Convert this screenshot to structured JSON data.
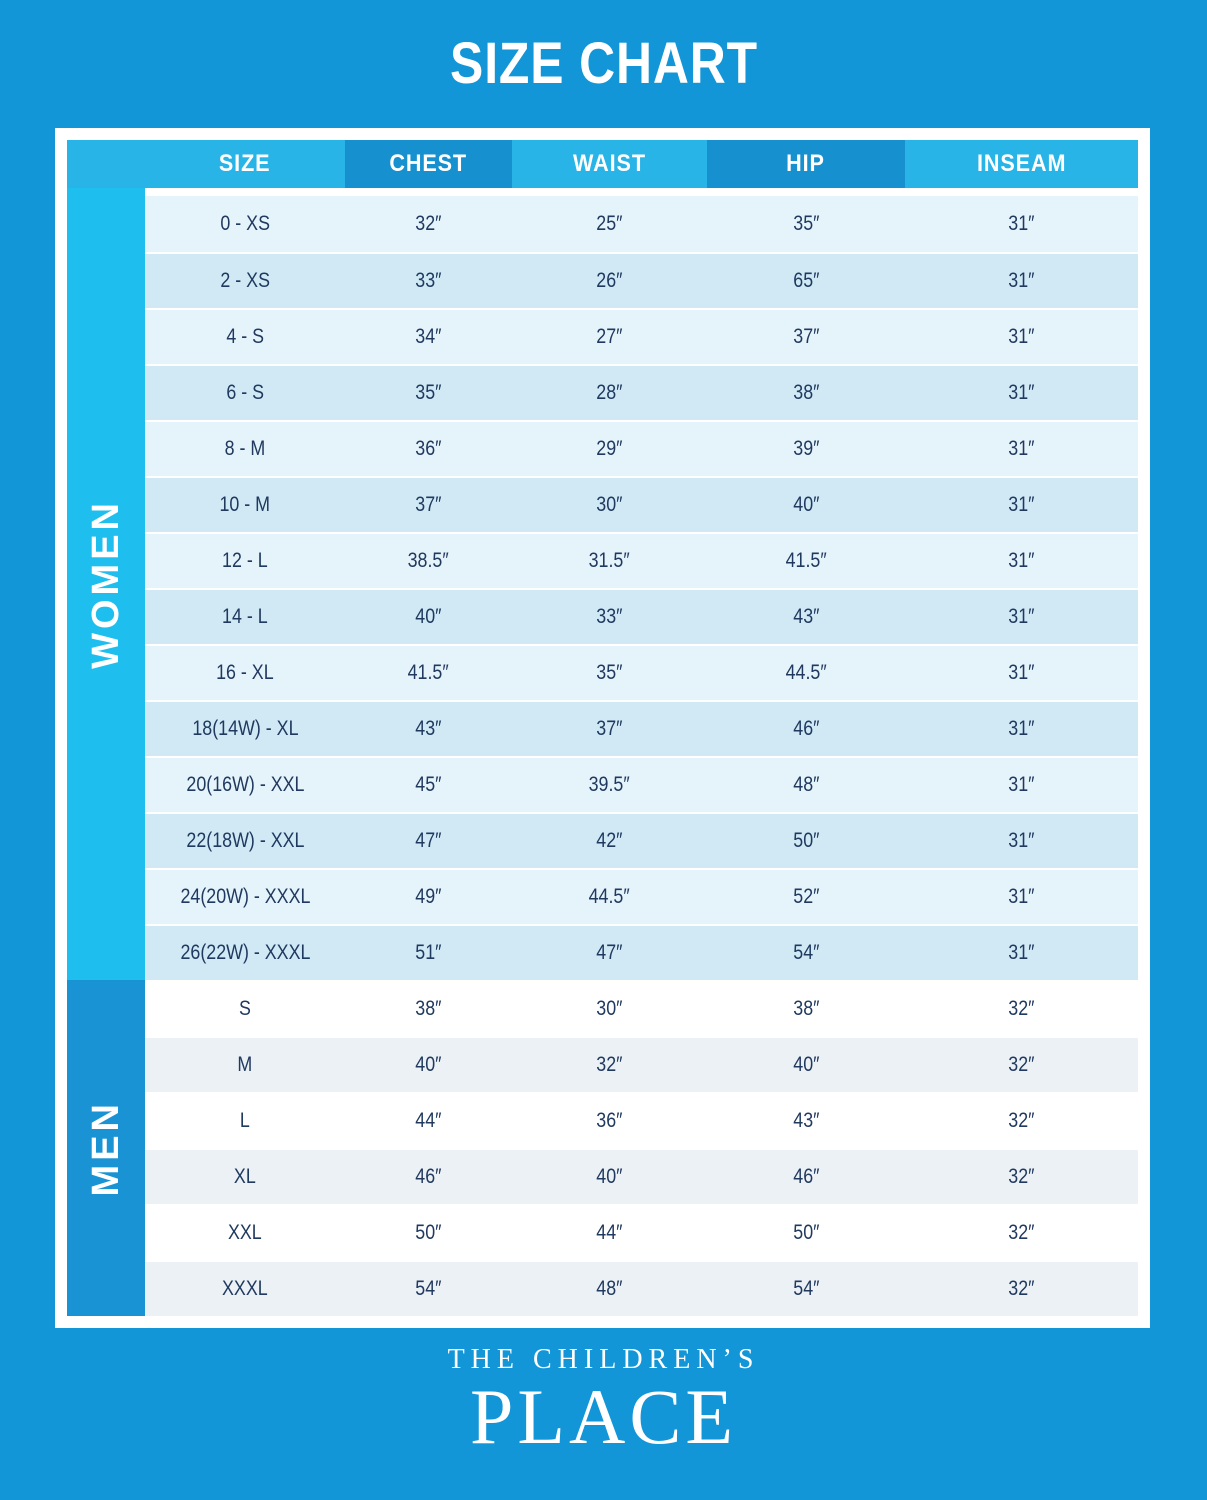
{
  "page_title": "SIZE CHART",
  "table": {
    "columns": [
      "SIZE",
      "CHEST",
      "WAIST",
      "HIP",
      "INSEAM"
    ],
    "sections": [
      {
        "label": "WOMEN",
        "rows": [
          [
            "0 - XS",
            "32″",
            "25″",
            "35″",
            "31″"
          ],
          [
            "2 - XS",
            "33″",
            "26″",
            "65″",
            "31″"
          ],
          [
            "4 - S",
            "34″",
            "27″",
            "37″",
            "31″"
          ],
          [
            "6 - S",
            "35″",
            "28″",
            "38″",
            "31″"
          ],
          [
            "8 - M",
            "36″",
            "29″",
            "39″",
            "31″"
          ],
          [
            "10 - M",
            "37″",
            "30″",
            "40″",
            "31″"
          ],
          [
            "12 - L",
            "38.5″",
            "31.5″",
            "41.5″",
            "31″"
          ],
          [
            "14 - L",
            "40″",
            "33″",
            "43″",
            "31″"
          ],
          [
            "16 - XL",
            "41.5″",
            "35″",
            "44.5″",
            "31″"
          ],
          [
            "18(14W) - XL",
            "43″",
            "37″",
            "46″",
            "31″"
          ],
          [
            "20(16W) - XXL",
            "45″",
            "39.5″",
            "48″",
            "31″"
          ],
          [
            "22(18W) - XXL",
            "47″",
            "42″",
            "50″",
            "31″"
          ],
          [
            "24(20W) - XXXL",
            "49″",
            "44.5″",
            "52″",
            "31″"
          ],
          [
            "26(22W) - XXXL",
            "51″",
            "47″",
            "54″",
            "31″"
          ]
        ]
      },
      {
        "label": "MEN",
        "rows": [
          [
            "S",
            "38″",
            "30″",
            "38″",
            "32″"
          ],
          [
            "M",
            "40″",
            "32″",
            "40″",
            "32″"
          ],
          [
            "L",
            "44″",
            "36″",
            "43″",
            "32″"
          ],
          [
            "XL",
            "46″",
            "40″",
            "46″",
            "32″"
          ],
          [
            "XXL",
            "50″",
            "44″",
            "50″",
            "32″"
          ],
          [
            "XXXL",
            "54″",
            "48″",
            "54″",
            "32″"
          ]
        ]
      }
    ]
  },
  "brand": {
    "line1": "THE CHILDREN’S",
    "line2": "PLACE"
  },
  "colors": {
    "background": "#1296d8",
    "frame": "#ffffff",
    "header_light": "#29b4e7",
    "header_dark": "#1790d0",
    "women_sidebar": "#1ebfee",
    "men_sidebar": "#1a93d4",
    "women_row_light": "#e5f3fa",
    "women_row_dark": "#d0e9f5",
    "men_row_light": "#ffffff",
    "men_row_dark": "#ecf1f5",
    "cell_text": "#20395f",
    "title_text": "#ffffff"
  }
}
